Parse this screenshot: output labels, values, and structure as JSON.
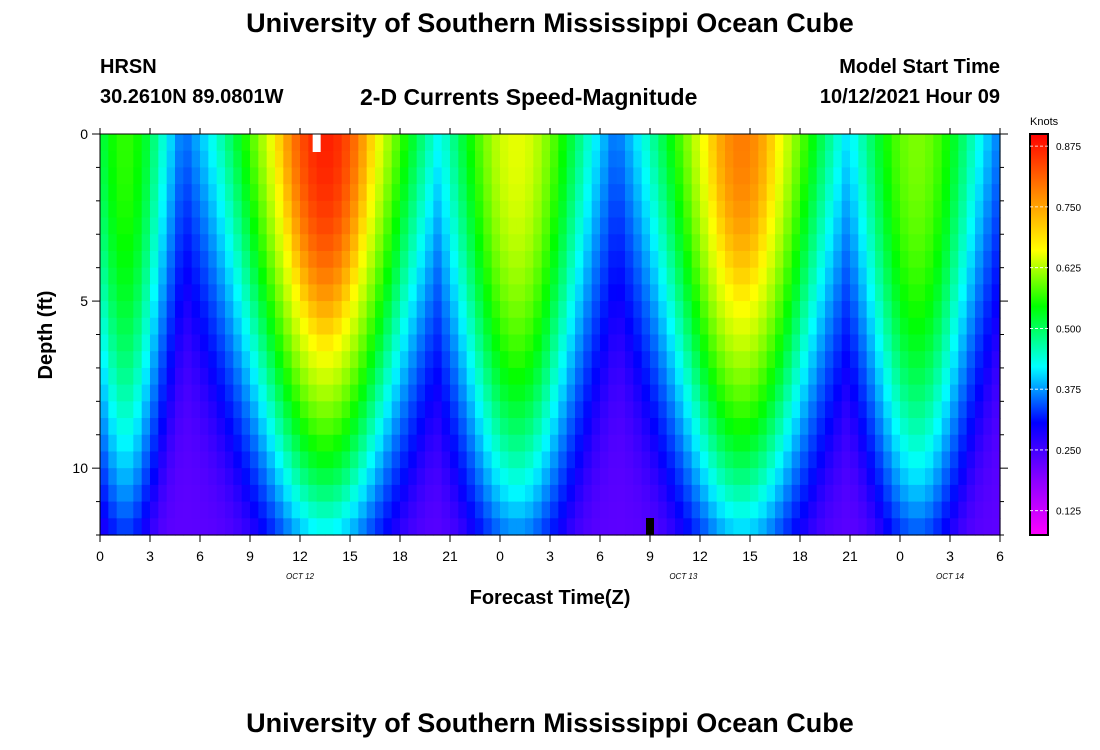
{
  "header": {
    "title": "University of Southern Mississippi Ocean Cube",
    "station": "HRSN",
    "coordinates": "30.2610N  89.0801W",
    "chart_title": "2-D Currents Speed-Magnitude",
    "model_start_label": "Model Start Time",
    "model_start_value": "10/12/2021 Hour 09"
  },
  "footer": {
    "title": "University of Southern Mississippi Ocean Cube"
  },
  "chart_data": {
    "type": "heatmap",
    "title": "2-D Currents Speed-Magnitude",
    "xlabel": "Forecast Time(Z)",
    "ylabel": "Depth (ft)",
    "x_ticks": [
      "0",
      "3",
      "6",
      "9",
      "12",
      "15",
      "18",
      "21",
      "0",
      "3",
      "6",
      "9",
      "12",
      "15",
      "18",
      "21",
      "0",
      "3",
      "6"
    ],
    "x_range_hours": [
      0,
      54
    ],
    "date_labels": [
      {
        "text": "OCT 12",
        "hour": 12
      },
      {
        "text": "OCT 13",
        "hour": 35
      },
      {
        "text": "OCT 14",
        "hour": 51
      }
    ],
    "y_ticks": [
      0,
      5,
      10
    ],
    "y_range": [
      0,
      12
    ],
    "colorbar": {
      "label": "Knots",
      "range": [
        0.075,
        0.9
      ],
      "ticks": [
        "0.875",
        "0.750",
        "0.625",
        "0.500",
        "0.375",
        "0.250",
        "0.125"
      ],
      "tick_values": [
        0.875,
        0.75,
        0.625,
        0.5,
        0.375,
        0.25,
        0.125
      ]
    },
    "peaks": [
      {
        "hour": 1.5,
        "speed": 0.6,
        "halfwidth_top": 3.2,
        "halfwidth_bottom": 1.4
      },
      {
        "hour": 13.5,
        "speed": 0.88,
        "halfwidth_top": 6.5,
        "halfwidth_bottom": 3.2
      },
      {
        "hour": 25.0,
        "speed": 0.72,
        "halfwidth_top": 5.0,
        "halfwidth_bottom": 2.5
      },
      {
        "hour": 38.5,
        "speed": 0.82,
        "halfwidth_top": 6.0,
        "halfwidth_bottom": 3.0
      },
      {
        "hour": 49.0,
        "speed": 0.65,
        "halfwidth_top": 4.5,
        "halfwidth_bottom": 2.0
      }
    ],
    "base_speed": 0.18,
    "current_time_hour": 13,
    "model_start_hour": 33
  }
}
